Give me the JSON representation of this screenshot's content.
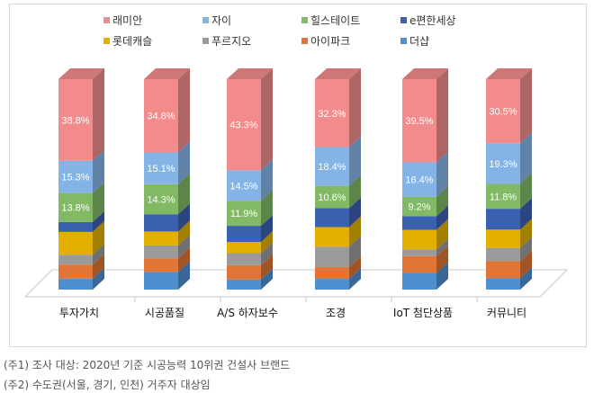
{
  "chart_data": {
    "type": "bar",
    "stacked": true,
    "three_d": true,
    "categories": [
      "투자가치",
      "시공품질",
      "A/S 하자보수",
      "조경",
      "IoT 첨단상품",
      "커뮤니티"
    ],
    "series": [
      {
        "name": "래미안",
        "color": "#f28c8c",
        "values": [
          38.8,
          34.8,
          43.3,
          32.3,
          39.5,
          30.5
        ],
        "labeled": true
      },
      {
        "name": "자이",
        "color": "#84b4e6",
        "values": [
          15.3,
          15.1,
          14.5,
          18.4,
          16.4,
          19.3
        ],
        "labeled": true
      },
      {
        "name": "힐스테이트",
        "color": "#82b965",
        "values": [
          13.8,
          14.3,
          11.9,
          10.6,
          9.2,
          11.8
        ],
        "labeled": true
      },
      {
        "name": "e편한세상",
        "color": "#3a60b0",
        "values": [
          4.7,
          8.2,
          7.7,
          9.0,
          6.5,
          9.9
        ],
        "labeled": false
      },
      {
        "name": "롯데캐슬",
        "color": "#e3b000",
        "values": [
          10.8,
          6.6,
          5.3,
          9.3,
          9.3,
          8.7
        ],
        "labeled": false
      },
      {
        "name": "푸르지오",
        "color": "#9b9b9b",
        "values": [
          4.7,
          6.1,
          5.7,
          9.7,
          3.2,
          6.3
        ],
        "labeled": false
      },
      {
        "name": "아이파크",
        "color": "#e07535",
        "values": [
          6.7,
          6.5,
          6.8,
          5.6,
          8.0,
          8.1
        ],
        "labeled": false
      },
      {
        "name": "더샵",
        "color": "#4f8fd0",
        "values": [
          5.2,
          8.4,
          4.8,
          5.1,
          7.9,
          5.4
        ],
        "labeled": false
      }
    ],
    "data_labels": {
      "래미안": [
        "38.8%",
        "34.8%",
        "43.3%",
        "32.3%",
        "39.5%",
        "30.5%"
      ],
      "자이": [
        "15.3%",
        "15.1%",
        "14.5%",
        "18.4%",
        "16.4%",
        "19.3%"
      ],
      "힐스테이트": [
        "13.8%",
        "14.3%",
        "11.9%",
        "10.6%",
        "9.2%",
        "11.8%"
      ]
    },
    "ylim": [
      0,
      100
    ],
    "legend_position": "top",
    "grid": false,
    "title": "",
    "xlabel": "",
    "ylabel": ""
  },
  "notes": [
    "(주1) 조사 대상: 2020년 기준 시공능력 10위권 건설사 브랜드",
    "(주2) 수도권(서울, 경기, 인천) 거주자 대상임"
  ]
}
